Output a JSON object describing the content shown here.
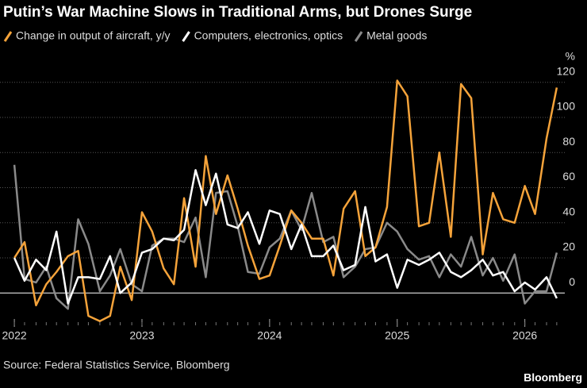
{
  "chart_data": {
    "type": "line",
    "title": "Putin’s War Machine Slows in Traditional Arms, but Drones Surge",
    "y_unit": "%",
    "source": "Source: Federal Statistics Service, Bloomberg",
    "brand": "Bloomberg",
    "x": [
      2022,
      2022.08,
      2022.17,
      2022.25,
      2022.33,
      2022.42,
      2022.5,
      2022.58,
      2022.67,
      2022.75,
      2022.83,
      2022.92,
      2023,
      2023.08,
      2023.17,
      2023.25,
      2023.33,
      2023.42,
      2023.5,
      2023.58,
      2023.67,
      2023.75,
      2023.83,
      2023.92,
      2024,
      2024.08,
      2024.17,
      2024.25,
      2024.33,
      2024.42,
      2024.5,
      2024.58,
      2024.67,
      2024.75,
      2024.83,
      2024.92,
      2025,
      2025.08,
      2025.17,
      2025.25,
      2025.33,
      2025.42,
      2025.5,
      2025.58,
      2025.67,
      2025.75,
      2025.83,
      2025.92,
      2026,
      2026.08,
      2026.17,
      2026.25
    ],
    "series": [
      {
        "name": "Change in output of aircraft, y/y",
        "color": "#f5a33a",
        "values": [
          20,
          29,
          -7,
          5,
          12,
          21,
          24,
          -13,
          -16,
          -13,
          15,
          -4,
          46,
          35,
          14,
          5,
          54,
          15,
          78,
          45,
          67,
          48,
          27,
          8,
          10,
          27,
          47,
          40,
          31,
          31,
          10,
          48,
          58,
          21,
          26,
          49,
          121,
          112,
          38,
          40,
          80,
          32,
          119,
          111,
          22,
          57,
          42,
          40,
          61,
          45,
          88,
          117
        ]
      },
      {
        "name": "Computers, electronics, optics",
        "color": "#ffffff",
        "values": [
          20,
          7,
          19,
          13,
          35,
          -6,
          9,
          9,
          8,
          21,
          0,
          6,
          23,
          25,
          31,
          30,
          36,
          70,
          50,
          68,
          39,
          37,
          46,
          28,
          47,
          45,
          25,
          39,
          21,
          21,
          27,
          13,
          16,
          49,
          18,
          22,
          3,
          19,
          16,
          19,
          23,
          12,
          9,
          13,
          19,
          10,
          12,
          1,
          6,
          2,
          9,
          -3
        ]
      },
      {
        "name": "Metal goods",
        "color": "#8a8a8a",
        "values": [
          73,
          8,
          6,
          15,
          -3,
          -9,
          42,
          28,
          1,
          10,
          25,
          5,
          1,
          27,
          31,
          31,
          29,
          43,
          9,
          57,
          58,
          38,
          12,
          11,
          26,
          31,
          47,
          36,
          57,
          29,
          32,
          9,
          15,
          25,
          26,
          40,
          35,
          25,
          19,
          21,
          9,
          22,
          15,
          32,
          10,
          20,
          7,
          22,
          -6,
          1,
          1,
          23
        ]
      }
    ],
    "xlim": [
      2021.9,
      2026.4
    ],
    "xticks": [
      2022,
      2023,
      2024,
      2025,
      2026
    ],
    "ylim": [
      -22,
      128
    ],
    "yticks": [
      0,
      20,
      40,
      60,
      80,
      100,
      120
    ],
    "grid": true
  }
}
